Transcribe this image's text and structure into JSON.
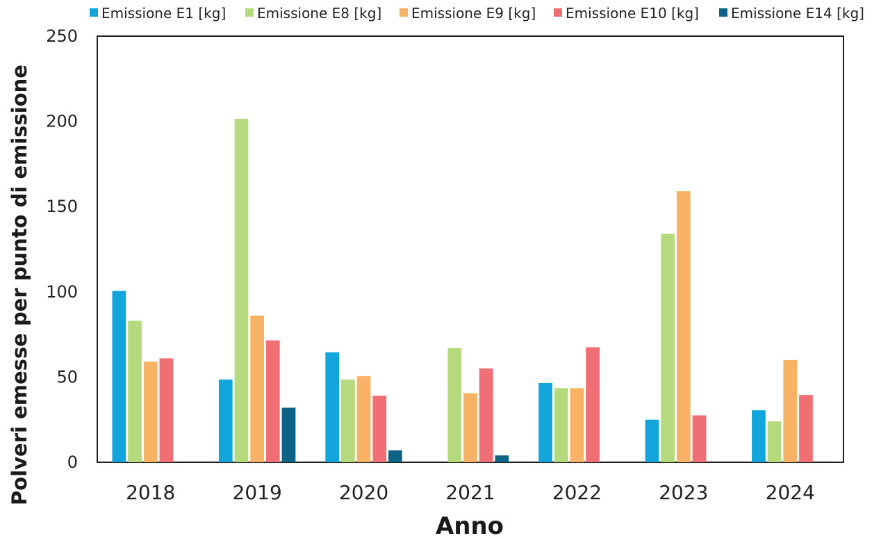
{
  "chart_data": {
    "type": "bar",
    "title": "",
    "xlabel": "Anno",
    "ylabel": "Polveri emesse per punto di emissione",
    "categories": [
      "2018",
      "2019",
      "2020",
      "2021",
      "2022",
      "2023",
      "2024"
    ],
    "ylim": [
      0,
      250
    ],
    "yticks": [
      "0",
      "50",
      "100",
      "150",
      "200",
      "250"
    ],
    "grid": false,
    "legend_position": "top",
    "series": [
      {
        "name": "Emissione E1 [kg]",
        "color": "#12a5dc",
        "values": [
          100.5,
          48.5,
          64.5,
          0,
          46.5,
          25,
          30.5
        ]
      },
      {
        "name": "Emissione E8 [kg]",
        "color": "#b5d97d",
        "values": [
          83,
          201.5,
          48.5,
          67,
          43.5,
          134,
          24
        ]
      },
      {
        "name": "Emissione E9 [kg]",
        "color": "#f8b266",
        "values": [
          59,
          86,
          50.5,
          40.5,
          43.5,
          159,
          60
        ]
      },
      {
        "name": "Emissione E10 [kg]",
        "color": "#ef6f74",
        "values": [
          61,
          71.5,
          39,
          55,
          67.5,
          27.5,
          39.5
        ]
      },
      {
        "name": "Emissione E14 [kg]",
        "color": "#0d6385",
        "values": [
          0,
          32,
          7,
          4,
          0,
          0,
          0
        ]
      }
    ]
  }
}
